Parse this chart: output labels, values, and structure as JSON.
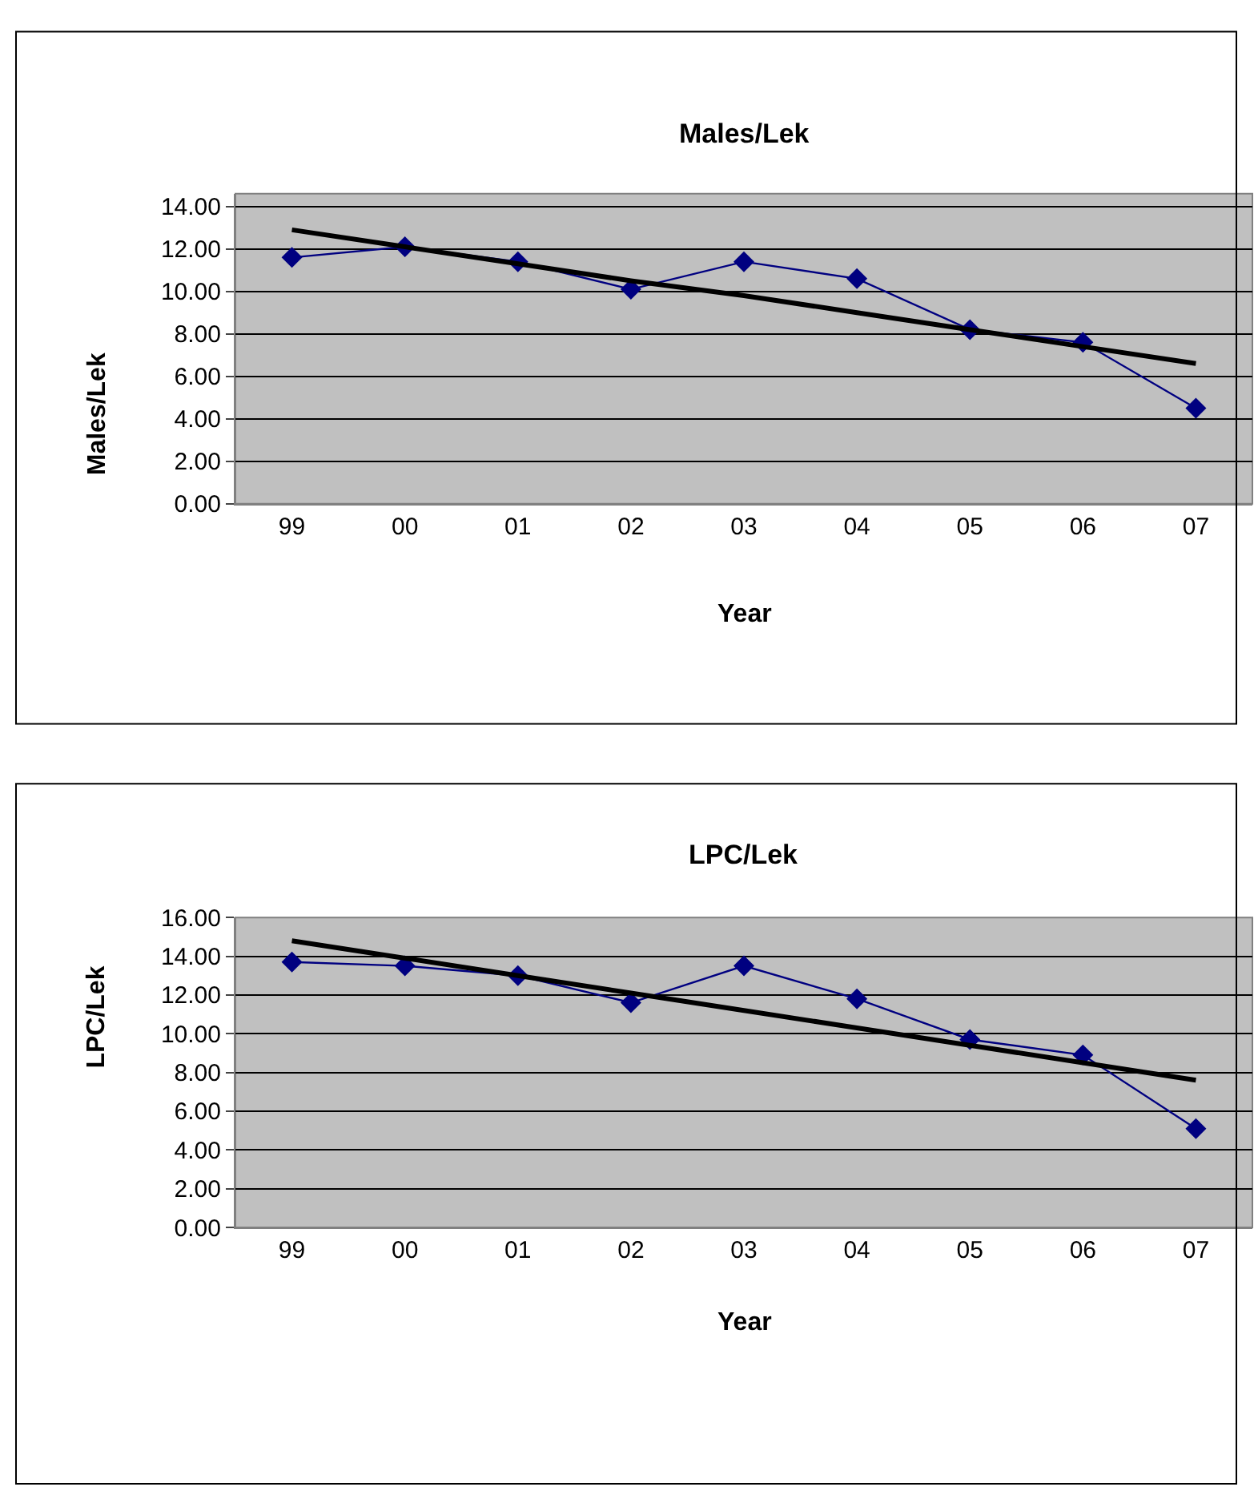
{
  "chart_data": [
    {
      "type": "line",
      "title": "Males/Lek",
      "xlabel": "Year",
      "ylabel": "Males/Lek",
      "categories": [
        "99",
        "00",
        "01",
        "02",
        "03",
        "04",
        "05",
        "06",
        "07"
      ],
      "series": [
        {
          "color": "#000080",
          "marker": "diamond",
          "values": [
            11.6,
            12.1,
            11.4,
            10.1,
            11.4,
            10.6,
            8.2,
            7.6,
            4.5
          ]
        },
        {
          "color": "#000000",
          "marker": "none",
          "values": [
            12.9,
            12.1,
            11.3,
            10.5,
            9.8,
            9.0,
            8.2,
            7.4,
            6.6
          ]
        }
      ],
      "ylim": [
        0,
        14.6
      ],
      "yticks": [
        {
          "value": 0,
          "label": "0.00"
        },
        {
          "value": 2,
          "label": "2.00"
        },
        {
          "value": 4,
          "label": "4.00"
        },
        {
          "value": 6,
          "label": "6.00"
        },
        {
          "value": 8,
          "label": "8.00"
        },
        {
          "value": 10,
          "label": "10.00"
        },
        {
          "value": 12,
          "label": "12.00"
        },
        {
          "value": 14,
          "label": "14.00"
        }
      ],
      "grid": "y"
    },
    {
      "type": "line",
      "title": "LPC/Lek",
      "xlabel": "Year",
      "ylabel": "LPC/Lek",
      "categories": [
        "99",
        "00",
        "01",
        "02",
        "03",
        "04",
        "05",
        "06",
        "07"
      ],
      "series": [
        {
          "color": "#000080",
          "marker": "diamond",
          "values": [
            13.7,
            13.5,
            13.0,
            11.6,
            13.5,
            11.8,
            9.7,
            8.9,
            5.1
          ]
        },
        {
          "color": "#000000",
          "marker": "none",
          "values": [
            14.8,
            13.9,
            13.0,
            12.1,
            11.2,
            10.3,
            9.4,
            8.5,
            7.6
          ]
        }
      ],
      "ylim": [
        0,
        16
      ],
      "yticks": [
        {
          "value": 0,
          "label": "0.00"
        },
        {
          "value": 2,
          "label": "2.00"
        },
        {
          "value": 4,
          "label": "4.00"
        },
        {
          "value": 6,
          "label": "6.00"
        },
        {
          "value": 8,
          "label": "8.00"
        },
        {
          "value": 10,
          "label": "10.00"
        },
        {
          "value": 12,
          "label": "12.00"
        },
        {
          "value": 14,
          "label": "14.00"
        },
        {
          "value": 16,
          "label": "16.00"
        }
      ],
      "grid": "y"
    }
  ]
}
